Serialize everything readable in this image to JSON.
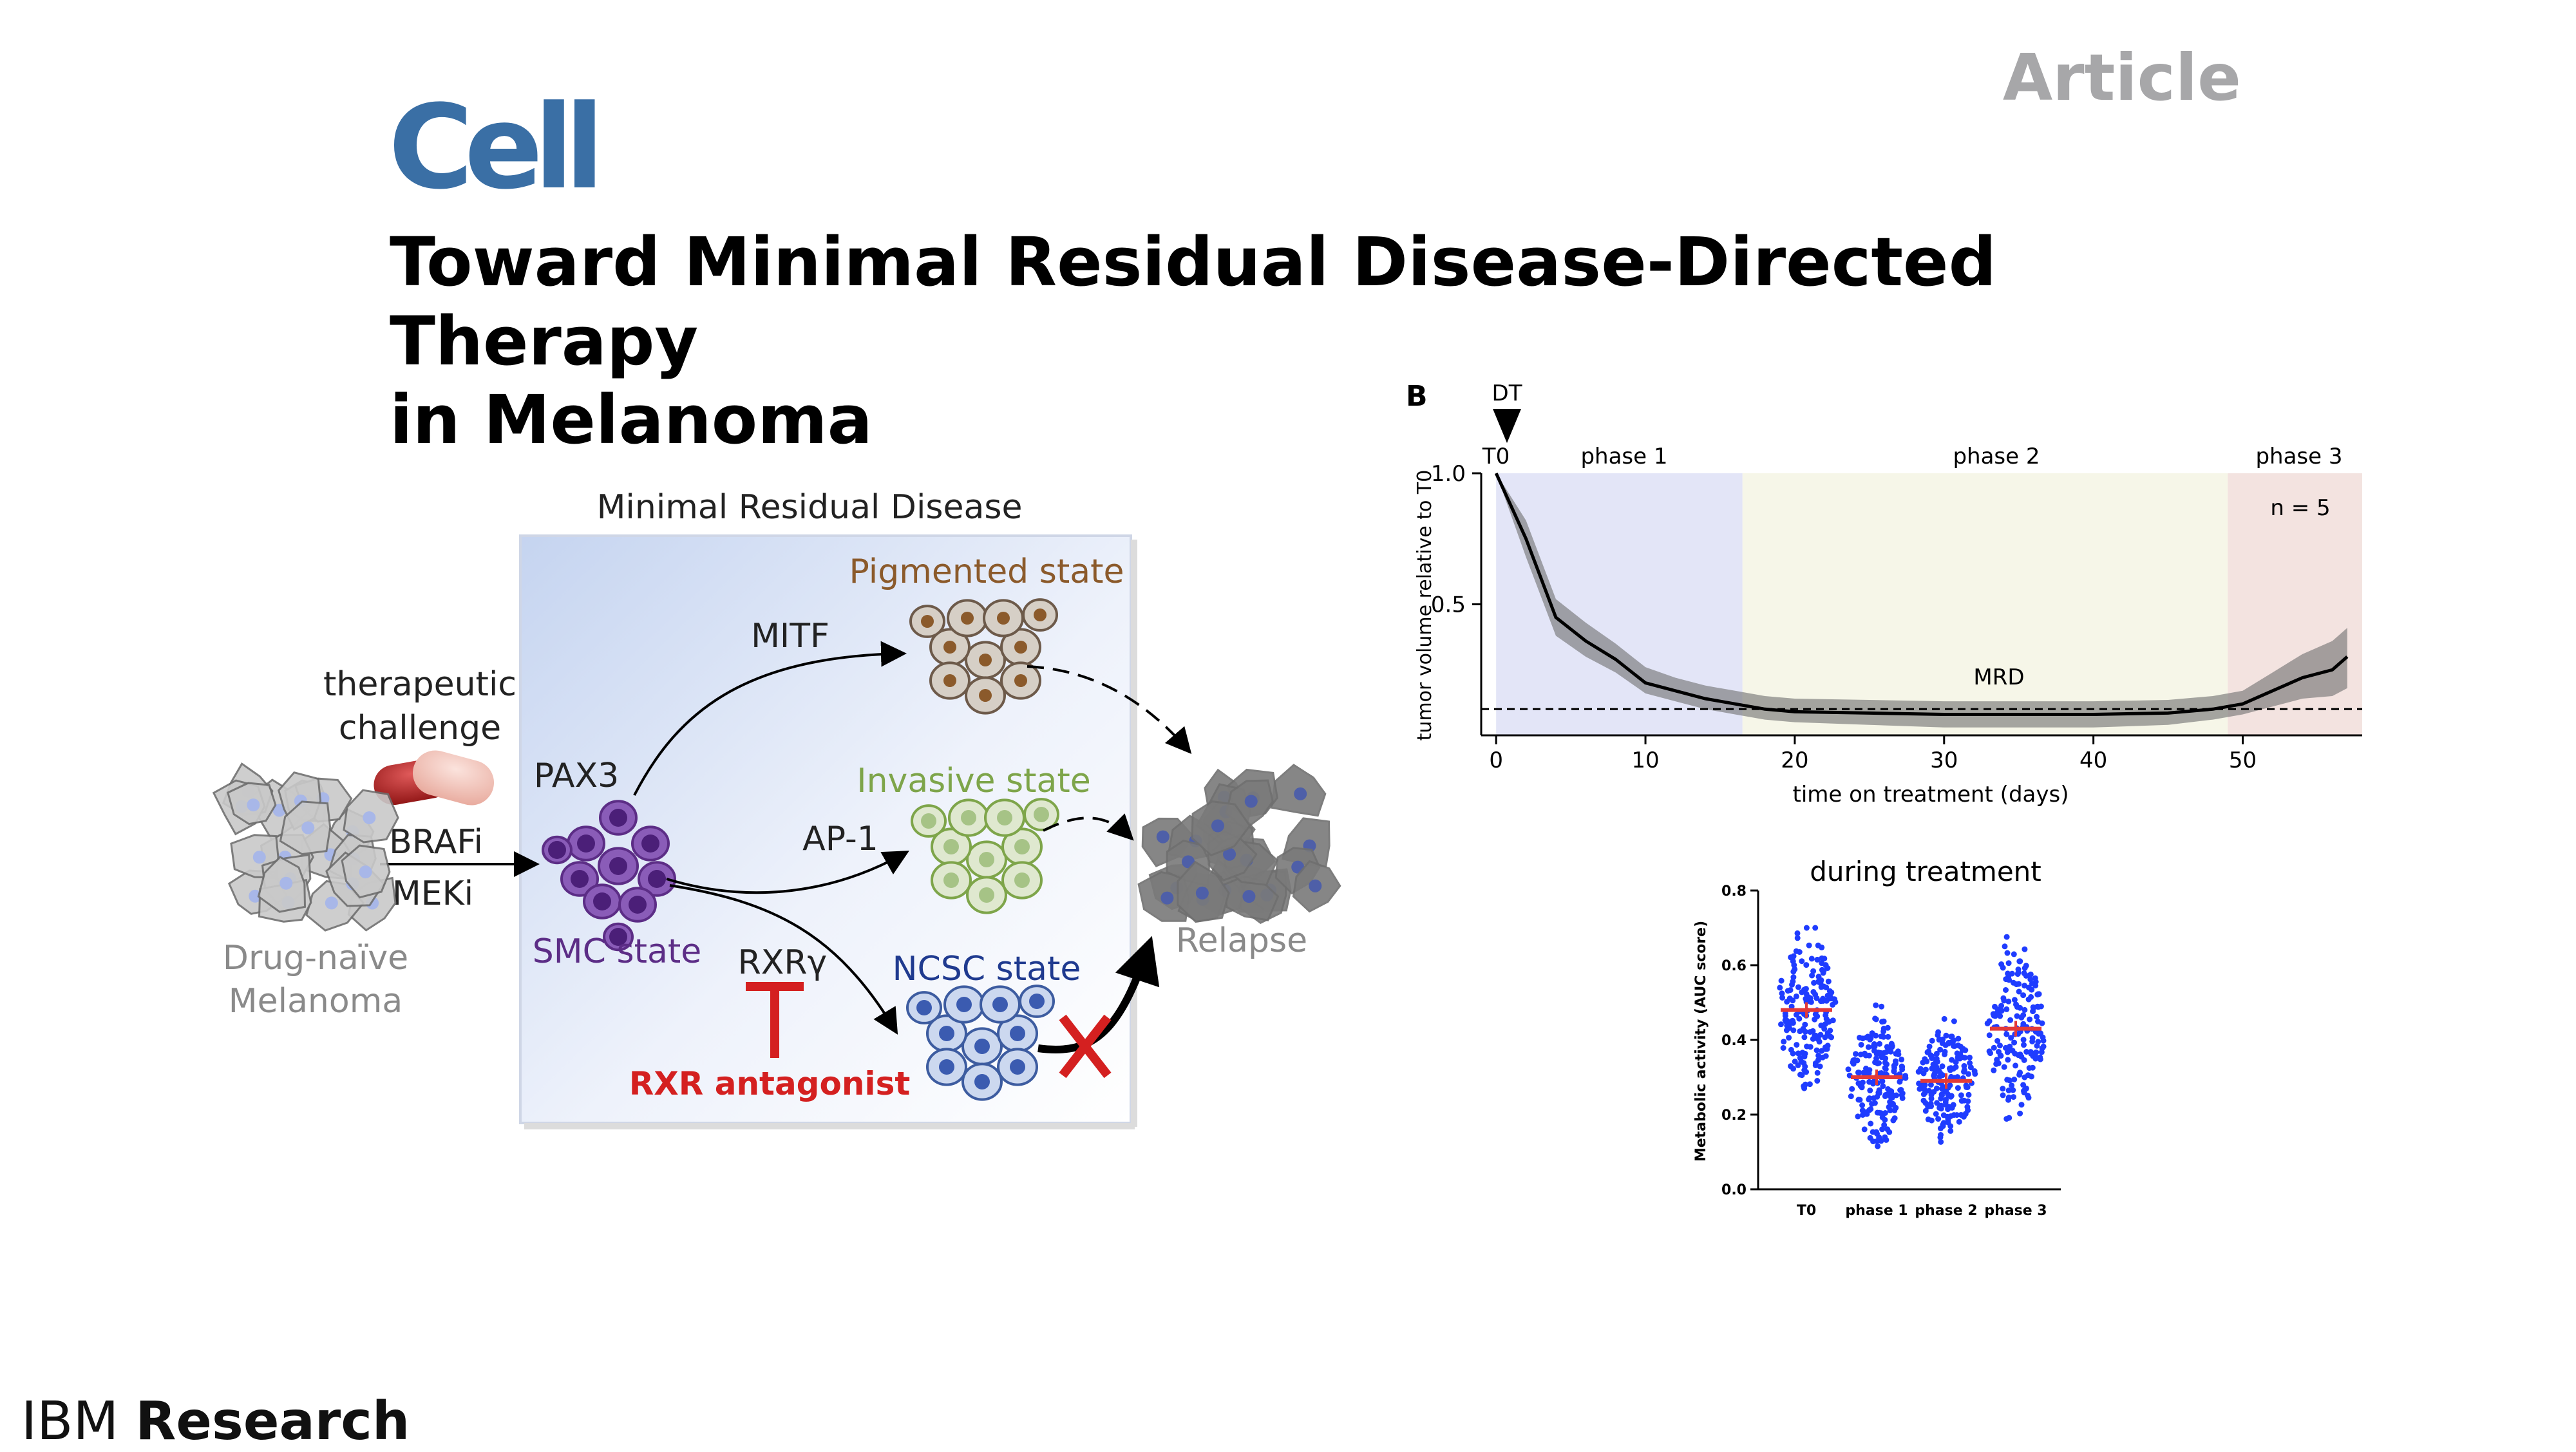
{
  "slide": {
    "journal_logo": "Cell",
    "article_type": "Article",
    "title_line1": "Toward Minimal Residual Disease-Directed Therapy",
    "title_line2": "in Melanoma",
    "footer_brand_light": "IBM",
    "footer_brand_bold": "Research"
  },
  "diagram": {
    "box_title": "Minimal Residual Disease",
    "left_label_1": "therapeutic",
    "left_label_2": "challenge",
    "drug_1": "BRAFi",
    "drug_2": "MEKi",
    "naive_1": "Drug-naïve",
    "naive_2": "Melanoma",
    "pax3": "PAX3",
    "smc": "SMC state",
    "mitf": "MITF",
    "ap1": "AP-1",
    "rxr": "RXRγ",
    "pigmented": "Pigmented state",
    "invasive": "Invasive state",
    "ncsc": "NCSC state",
    "relapse": "Relapse",
    "antagonist": "RXR antagonist",
    "colors": {
      "pigmented": "#8b5a2b",
      "invasive": "#7ea54a",
      "ncsc": "#1f3a8f",
      "smc": "#5c2d86",
      "antagonist": "#d42020",
      "box_top": "#c9d7f1"
    }
  },
  "panel_b": {
    "label": "B",
    "dt_label": "DT",
    "t0_label": "T0",
    "phase1": "phase 1",
    "phase2": "phase 2",
    "phase3": "phase 3",
    "n_label": "n = 5",
    "mrd_label": "MRD",
    "ylabel": "tumor volume relative to T0",
    "xlabel": "time on treatment (days)",
    "phase_colors": [
      "#e3e5f7",
      "#f6f6e8",
      "#f3e3e0"
    ]
  },
  "panel_c": {
    "title": "during treatment",
    "ylabel": "Metabolic activity (AUC score)",
    "point_color": "#1f3cff",
    "median_color": "#e23a3a"
  },
  "chart_data": [
    {
      "type": "line",
      "title": "",
      "xlabel": "time on treatment (days)",
      "ylabel": "tumor volume relative to T0",
      "xlim": [
        -1,
        58
      ],
      "ylim": [
        0,
        1.0
      ],
      "xticks": [
        0,
        10,
        20,
        30,
        40,
        50
      ],
      "yticks": [
        0.5,
        1.0
      ],
      "phases": [
        {
          "name": "phase 1",
          "start": 0,
          "end": 16.5
        },
        {
          "name": "phase 2",
          "start": 16.5,
          "end": 49
        },
        {
          "name": "phase 3",
          "start": 49,
          "end": 58
        }
      ],
      "mrd_threshold": 0.1,
      "series": [
        {
          "x": [
            0,
            2,
            4,
            6,
            8,
            10,
            12,
            14,
            16,
            18,
            20,
            25,
            30,
            35,
            40,
            45,
            48,
            50,
            52,
            54,
            56,
            57
          ],
          "y": [
            1.0,
            0.75,
            0.45,
            0.36,
            0.29,
            0.2,
            0.17,
            0.14,
            0.12,
            0.1,
            0.09,
            0.085,
            0.08,
            0.08,
            0.08,
            0.085,
            0.1,
            0.12,
            0.17,
            0.22,
            0.25,
            0.3
          ],
          "lower": [
            1.0,
            0.68,
            0.38,
            0.3,
            0.24,
            0.16,
            0.13,
            0.1,
            0.08,
            0.06,
            0.05,
            0.04,
            0.03,
            0.03,
            0.03,
            0.04,
            0.06,
            0.08,
            0.11,
            0.14,
            0.15,
            0.18
          ],
          "upper": [
            1.0,
            0.82,
            0.52,
            0.43,
            0.35,
            0.26,
            0.22,
            0.19,
            0.17,
            0.15,
            0.14,
            0.135,
            0.13,
            0.13,
            0.13,
            0.135,
            0.15,
            0.17,
            0.24,
            0.31,
            0.36,
            0.41
          ]
        }
      ]
    },
    {
      "type": "scatter",
      "title": "during treatment",
      "xlabel": "",
      "ylabel": "Metabolic activity (AUC score)",
      "ylim": [
        0.0,
        0.8
      ],
      "yticks": [
        0.0,
        0.2,
        0.4,
        0.6,
        0.8
      ],
      "categories": [
        "T0",
        "phase 1",
        "phase 2",
        "phase 3"
      ],
      "medians": [
        0.48,
        0.3,
        0.29,
        0.43
      ],
      "ranges": [
        [
          0.16,
          0.7
        ],
        [
          0.1,
          0.51
        ],
        [
          0.08,
          0.47
        ],
        [
          0.18,
          0.74
        ]
      ],
      "n_per_group": [
        180,
        180,
        180,
        180
      ]
    }
  ]
}
